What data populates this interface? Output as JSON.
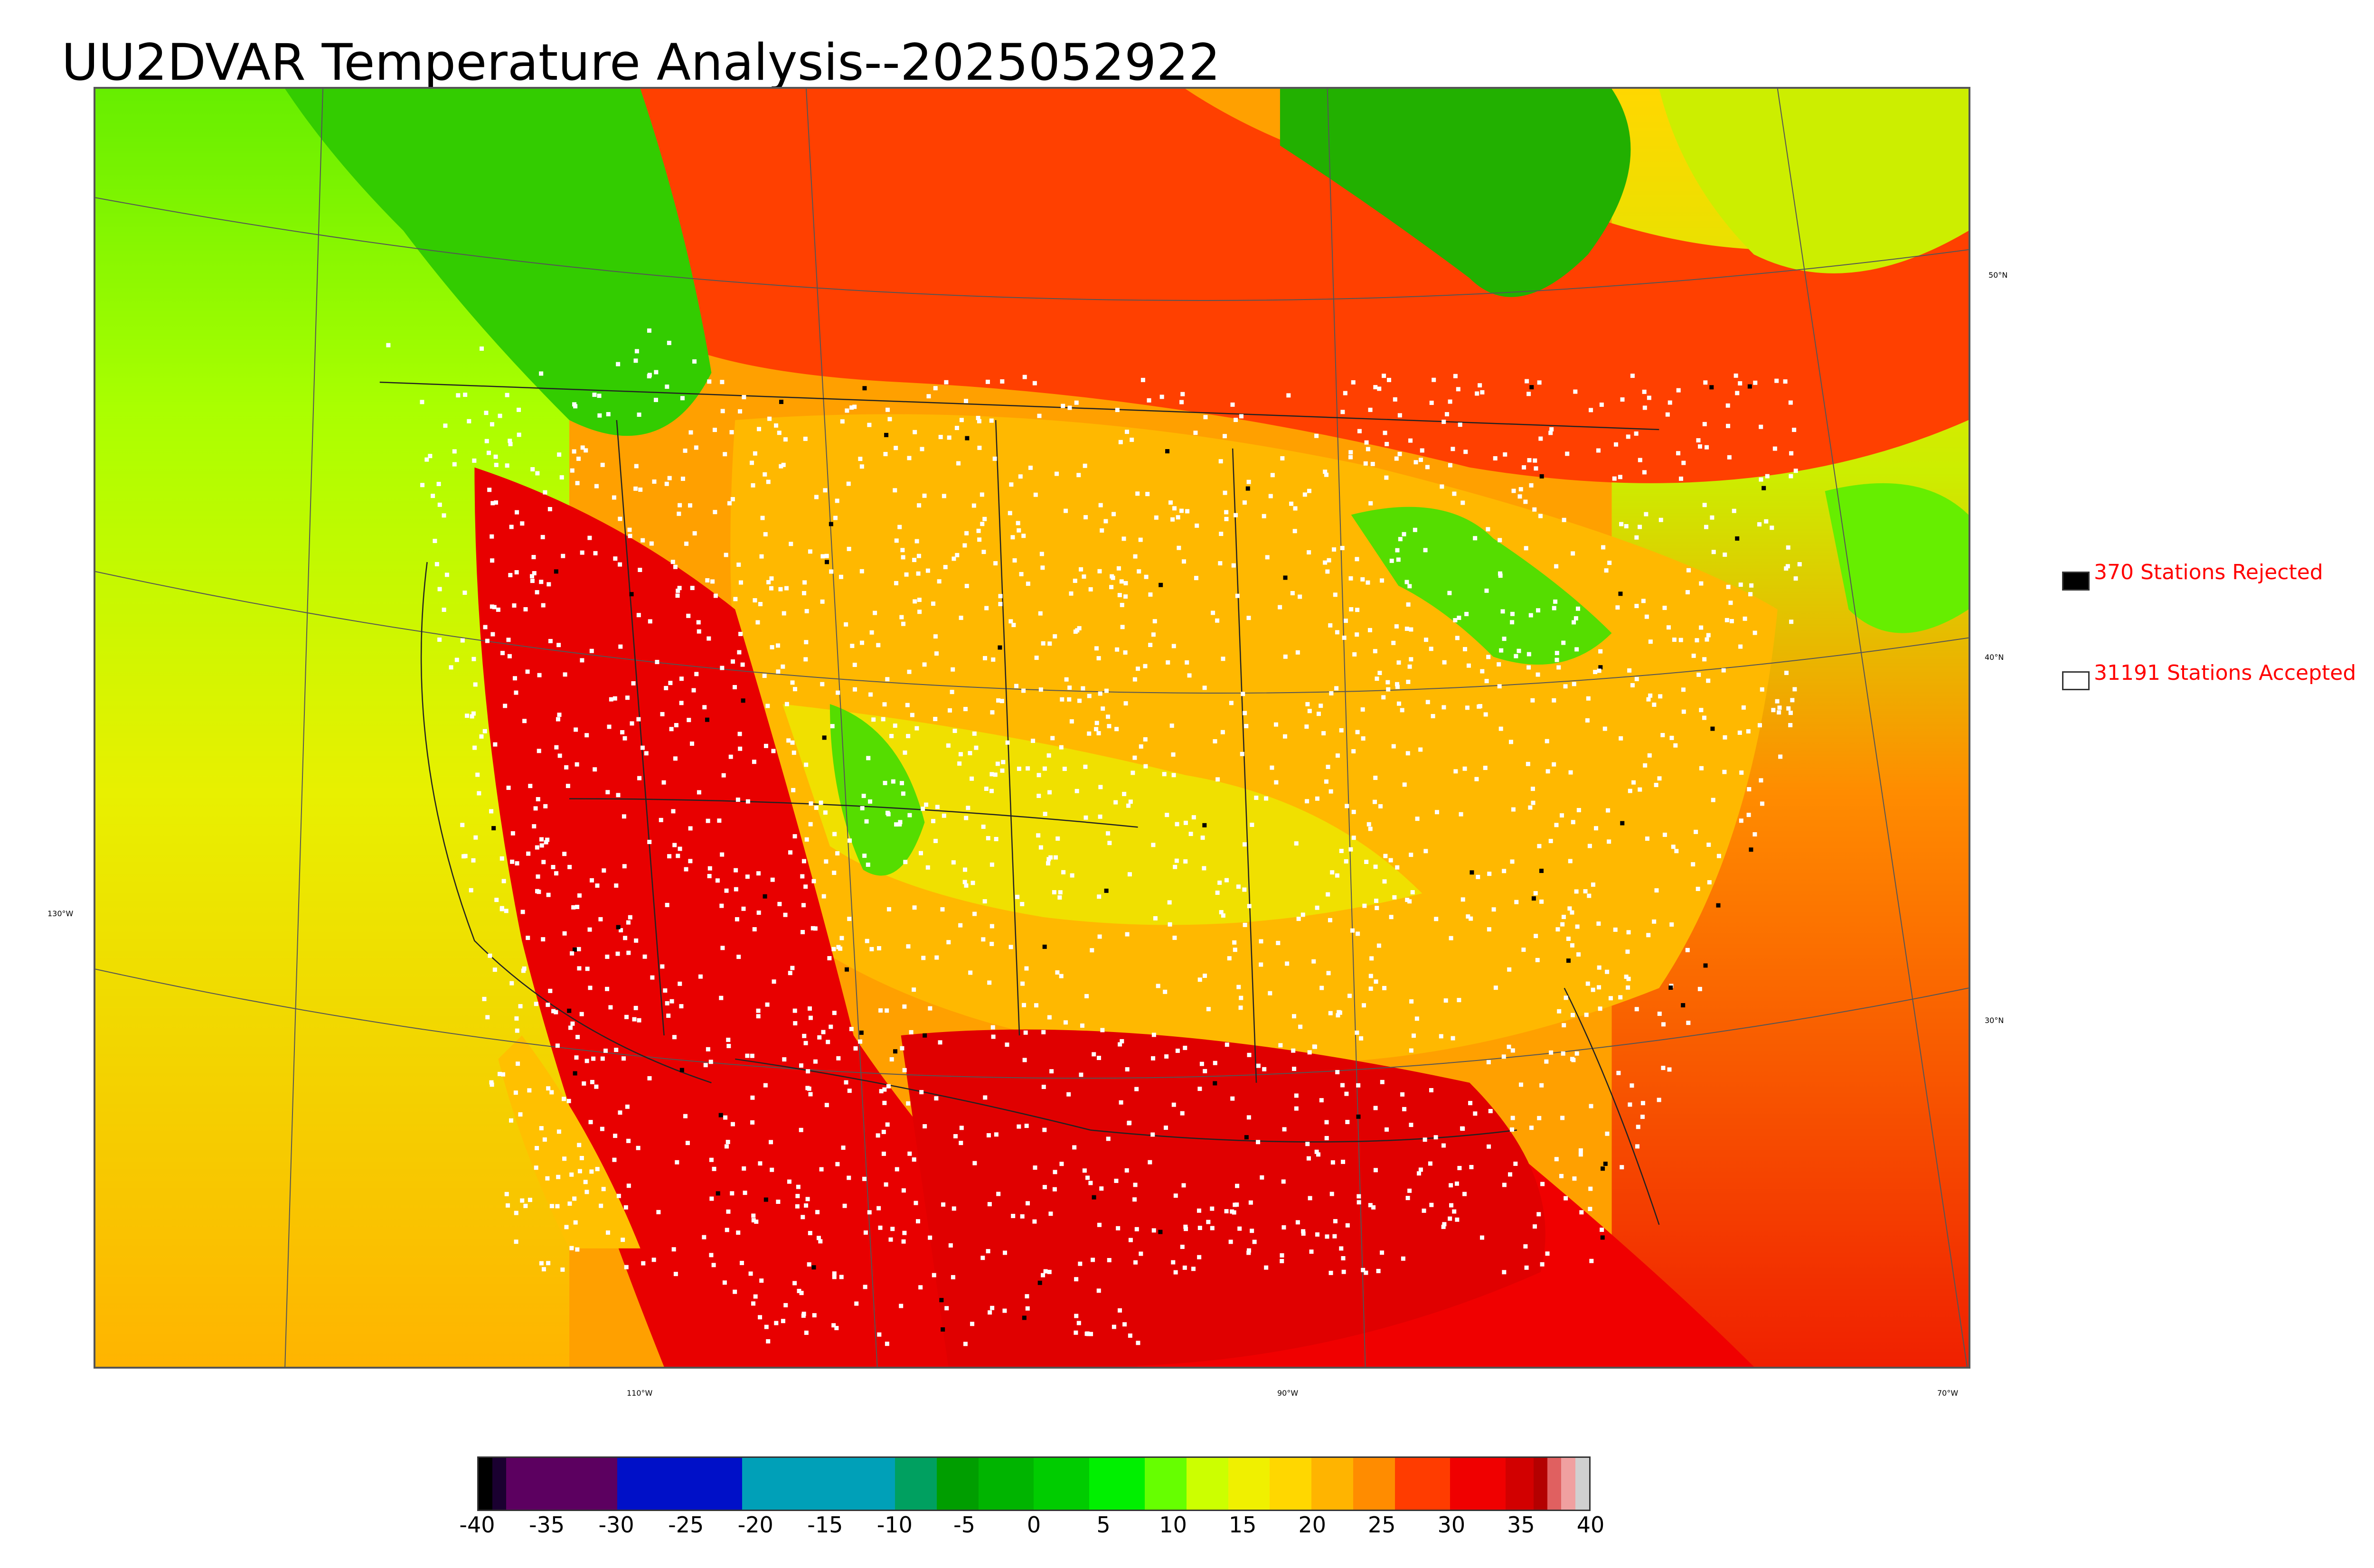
{
  "title": "UU2DVAR Temperature Analysis--2025052922",
  "legend": {
    "rejected_label": "370 Stations Rejected",
    "accepted_label": "31191 Stations Accepted",
    "rejected_color": "#000000",
    "accepted_color": "#ffffff",
    "text_color": "#ff0000"
  },
  "graticule_labels": {
    "lat_50": "50°N",
    "lat_40": "40°N",
    "lat_30": "30°N",
    "lon_130": "130°W",
    "lon_110": "110°W",
    "lon_90": "90°W",
    "lon_70": "70°W"
  },
  "colorbar": {
    "min": -40,
    "max": 40,
    "ticks": [
      "-40",
      "-35",
      "-30",
      "-25",
      "-20",
      "-15",
      "-10",
      "-5",
      "0",
      "5",
      "10",
      "15",
      "20",
      "25",
      "30",
      "35",
      "40"
    ],
    "colors": [
      {
        "from": -40,
        "to": -39,
        "color": "#000000"
      },
      {
        "from": -39,
        "to": -38,
        "color": "#1a0030"
      },
      {
        "from": -38,
        "to": -31,
        "color": "#5c0060"
      },
      {
        "from": -31,
        "to": -30,
        "color": "#5c0060"
      },
      {
        "from": -30,
        "to": -22,
        "color": "#0010c8"
      },
      {
        "from": -22,
        "to": -21,
        "color": "#0010c8"
      },
      {
        "from": -21,
        "to": -10,
        "color": "#00a0b8"
      },
      {
        "from": -10,
        "to": -7,
        "color": "#00a060"
      },
      {
        "from": -7,
        "to": -4,
        "color": "#009e00"
      },
      {
        "from": -4,
        "to": 0,
        "color": "#00b400"
      },
      {
        "from": 0,
        "to": 4,
        "color": "#00cc00"
      },
      {
        "from": 4,
        "to": 8,
        "color": "#00f000"
      },
      {
        "from": 8,
        "to": 11,
        "color": "#66ff00"
      },
      {
        "from": 11,
        "to": 14,
        "color": "#ccff00"
      },
      {
        "from": 14,
        "to": 17,
        "color": "#f0f000"
      },
      {
        "from": 17,
        "to": 20,
        "color": "#ffd700"
      },
      {
        "from": 20,
        "to": 23,
        "color": "#ffb400"
      },
      {
        "from": 23,
        "to": 26,
        "color": "#ff8c00"
      },
      {
        "from": 26,
        "to": 30,
        "color": "#ff3c00"
      },
      {
        "from": 30,
        "to": 34,
        "color": "#f00000"
      },
      {
        "from": 34,
        "to": 36,
        "color": "#d20000"
      },
      {
        "from": 36,
        "to": 37,
        "color": "#b40000"
      },
      {
        "from": 37,
        "to": 38,
        "color": "#e06060"
      },
      {
        "from": 38,
        "to": 39,
        "color": "#f0a0a0"
      },
      {
        "from": 39,
        "to": 40,
        "color": "#d0d0d0"
      }
    ]
  }
}
